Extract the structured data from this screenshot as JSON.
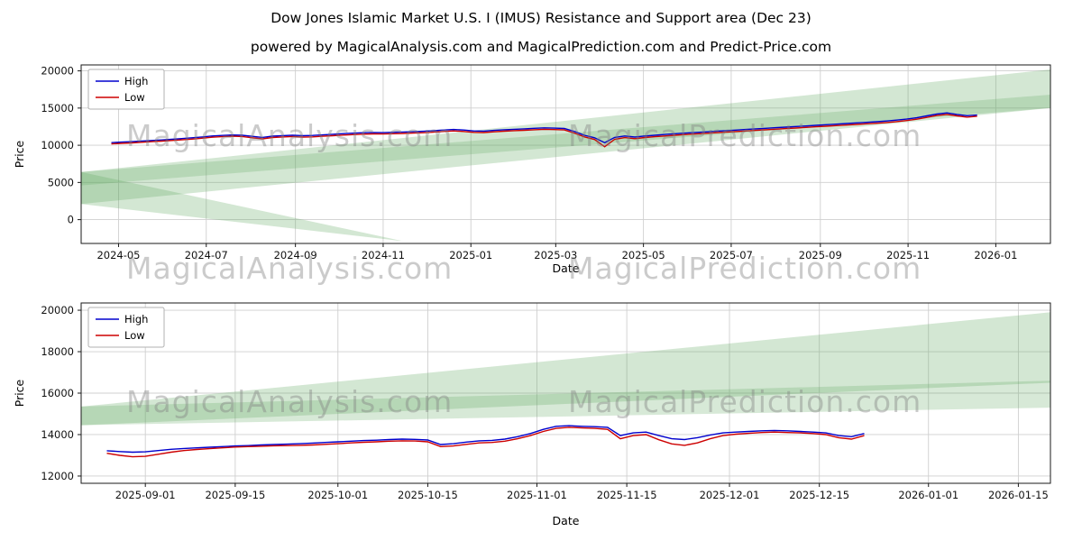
{
  "titles": {
    "main": "Dow Jones Islamic Market U.S. I (IMUS) Resistance and Support area (Dec 23)",
    "subtitle": "powered by MagicalAnalysis.com and MagicalPrediction.com and Predict-Price.com"
  },
  "watermarks": {
    "analysis": "MagicalAnalysis.com",
    "prediction": "MagicalPrediction.com"
  },
  "colors": {
    "high": "#0000cd",
    "low": "#cd0000",
    "band": "#60a860",
    "grid": "#cfcfcf",
    "spine": "#1a1a1a",
    "tick_text": "#111111"
  },
  "chart_data": [
    {
      "type": "line",
      "title": "",
      "xlabel": "Date",
      "ylabel": "Price",
      "grid": true,
      "legend_position": "upper left",
      "legend": [
        "High",
        "Low"
      ],
      "x_range": [
        "2024-04-05",
        "2026-02-08"
      ],
      "y_range": [
        -3200,
        20800
      ],
      "y_ticks": [
        0,
        5000,
        10000,
        15000,
        20000
      ],
      "x_tick_labels": [
        "2024-05",
        "2024-07",
        "2024-09",
        "2024-11",
        "2025-01",
        "2025-03",
        "2025-05",
        "2025-07",
        "2025-09",
        "2025-11",
        "2026-01"
      ],
      "x_tick_dates": [
        "2024-05-01",
        "2024-07-01",
        "2024-09-01",
        "2024-11-01",
        "2025-01-01",
        "2025-03-01",
        "2025-05-01",
        "2025-07-01",
        "2025-09-01",
        "2025-11-01",
        "2026-01-01"
      ],
      "series": [
        {
          "name": "High",
          "color": "#0000cd",
          "start": "2024-04-26",
          "step_days": 7,
          "values": [
            10350,
            10420,
            10480,
            10560,
            10640,
            10720,
            10800,
            10900,
            11000,
            11120,
            11250,
            11320,
            11380,
            11350,
            11200,
            11050,
            11220,
            11300,
            11350,
            11280,
            11320,
            11400,
            11480,
            11560,
            11620,
            11680,
            11720,
            11700,
            11740,
            11780,
            11830,
            11880,
            11950,
            12050,
            12120,
            12050,
            11930,
            11900,
            12000,
            12080,
            12150,
            12200,
            12280,
            12340,
            12300,
            12250,
            11850,
            11350,
            11000,
            10350,
            11050,
            11250,
            11100,
            11250,
            11350,
            11450,
            11550,
            11640,
            11720,
            11800,
            11880,
            11960,
            12040,
            12120,
            12200,
            12280,
            12360,
            12440,
            12520,
            12600,
            12680,
            12760,
            12840,
            12920,
            13000,
            13080,
            13160,
            13260,
            13380,
            13520,
            13700,
            13950,
            14200,
            14350,
            14150,
            13980,
            14060
          ]
        },
        {
          "name": "Low",
          "color": "#cd0000",
          "start": "2024-04-26",
          "step_days": 7,
          "values": [
            10180,
            10260,
            10320,
            10400,
            10480,
            10560,
            10640,
            10730,
            10830,
            10950,
            11080,
            11150,
            11210,
            11170,
            11010,
            10860,
            11040,
            11120,
            11170,
            11090,
            11130,
            11210,
            11290,
            11370,
            11430,
            11490,
            11530,
            11510,
            11550,
            11590,
            11640,
            11690,
            11760,
            11860,
            11930,
            11850,
            11730,
            11710,
            11810,
            11890,
            11960,
            12010,
            12090,
            12150,
            12110,
            12060,
            11640,
            11130,
            10780,
            9800,
            10800,
            11030,
            10880,
            11040,
            11150,
            11250,
            11350,
            11440,
            11520,
            11600,
            11680,
            11760,
            11840,
            11920,
            12000,
            12080,
            12160,
            12240,
            12320,
            12400,
            12480,
            12560,
            12640,
            12720,
            12800,
            12880,
            12960,
            13060,
            13180,
            13320,
            13500,
            13750,
            14000,
            14150,
            13950,
            13780,
            13900
          ]
        }
      ],
      "bands": [
        {
          "name": "resistance-support-outer",
          "opacity": 0.28,
          "points": [
            [
              "2024-04-05",
              6400
            ],
            [
              "2026-02-08",
              20200
            ],
            [
              "2026-02-08",
              15000
            ],
            [
              "2024-04-05",
              2100
            ]
          ]
        },
        {
          "name": "resistance-support-inner",
          "opacity": 0.25,
          "points": [
            [
              "2024-04-05",
              6400
            ],
            [
              "2026-02-08",
              16800
            ],
            [
              "2026-02-08",
              15000
            ],
            [
              "2024-04-05",
              4600
            ]
          ]
        },
        {
          "name": "support-wedge",
          "opacity": 0.28,
          "points": [
            [
              "2024-04-05",
              6400
            ],
            [
              "2024-04-05",
              2100
            ],
            [
              "2024-11-15",
              -2900
            ]
          ]
        }
      ]
    },
    {
      "type": "line",
      "title": "",
      "xlabel": "Date",
      "ylabel": "Price",
      "grid": true,
      "legend_position": "upper left",
      "legend": [
        "High",
        "Low"
      ],
      "x_range": [
        "2025-08-22",
        "2026-01-20"
      ],
      "y_range": [
        11650,
        20350
      ],
      "y_ticks": [
        12000,
        14000,
        16000,
        18000,
        20000
      ],
      "x_tick_labels": [
        "2025-09-01",
        "2025-09-15",
        "2025-10-01",
        "2025-10-15",
        "2025-11-01",
        "2025-11-15",
        "2025-12-01",
        "2025-12-15",
        "2026-01-01",
        "2026-01-15"
      ],
      "x_tick_dates": [
        "2025-09-01",
        "2025-09-15",
        "2025-10-01",
        "2025-10-15",
        "2025-11-01",
        "2025-11-15",
        "2025-12-01",
        "2025-12-15",
        "2026-01-01",
        "2026-01-15"
      ],
      "series": [
        {
          "name": "High",
          "color": "#0000cd",
          "start": "2025-08-26",
          "step_days": 2,
          "values": [
            13220,
            13180,
            13150,
            13170,
            13230,
            13290,
            13330,
            13360,
            13390,
            13420,
            13450,
            13470,
            13500,
            13520,
            13540,
            13560,
            13590,
            13620,
            13650,
            13680,
            13710,
            13730,
            13760,
            13780,
            13770,
            13740,
            13520,
            13560,
            13640,
            13700,
            13720,
            13780,
            13900,
            14050,
            14250,
            14400,
            14430,
            14400,
            14380,
            14350,
            13950,
            14080,
            14120,
            13950,
            13800,
            13760,
            13850,
            13980,
            14080,
            14120,
            14150,
            14180,
            14200,
            14180,
            14150,
            14120,
            14080,
            13950,
            13900,
            14050
          ]
        },
        {
          "name": "Low",
          "color": "#cd0000",
          "start": "2025-08-26",
          "step_days": 2,
          "values": [
            13100,
            13000,
            12930,
            12950,
            13050,
            13150,
            13230,
            13280,
            13320,
            13360,
            13400,
            13420,
            13440,
            13460,
            13470,
            13480,
            13500,
            13530,
            13560,
            13600,
            13630,
            13650,
            13680,
            13700,
            13690,
            13650,
            13420,
            13450,
            13530,
            13600,
            13620,
            13680,
            13800,
            13950,
            14150,
            14300,
            14350,
            14320,
            14300,
            14250,
            13800,
            13950,
            14000,
            13750,
            13550,
            13480,
            13600,
            13800,
            13950,
            14020,
            14060,
            14100,
            14120,
            14100,
            14080,
            14050,
            14000,
            13850,
            13780,
            13950
          ]
        }
      ],
      "bands": [
        {
          "name": "resistance-support-outer",
          "opacity": 0.28,
          "points": [
            [
              "2025-08-22",
              15350
            ],
            [
              "2026-01-20",
              19900
            ],
            [
              "2026-01-20",
              16500
            ],
            [
              "2025-08-22",
              14450
            ]
          ]
        },
        {
          "name": "resistance-support-inner",
          "opacity": 0.25,
          "points": [
            [
              "2025-08-22",
              15350
            ],
            [
              "2026-01-20",
              16600
            ],
            [
              "2026-01-20",
              15300
            ],
            [
              "2025-08-22",
              14450
            ]
          ]
        }
      ]
    }
  ]
}
